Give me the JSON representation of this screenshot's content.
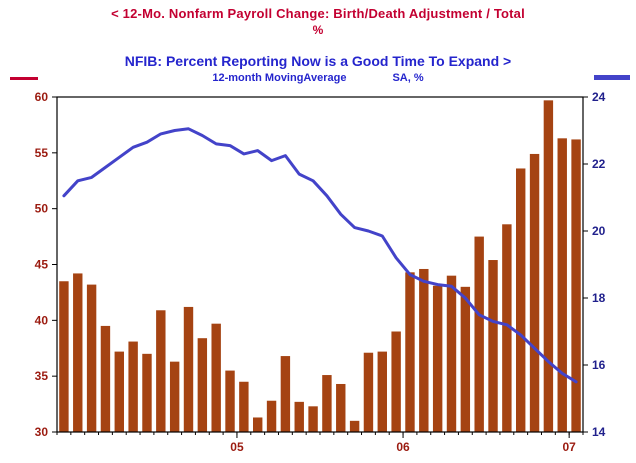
{
  "header": {
    "series_left_title": "<  12-Mo. Nonfarm Payroll Change: Birth/Death Adjustment / Total",
    "series_left_units": "%",
    "series_right_title": "NFIB: Percent Reporting Now is a Good Time To Expand  >",
    "series_right_subtitle_1": "12-month MovingAverage",
    "series_right_subtitle_2": "SA, %"
  },
  "colors": {
    "background": "#FFFFFF",
    "title_red": "#C30031",
    "title_blue": "#2525CD",
    "left_axis_text": "#9B1B10",
    "right_axis_text": "#20208C",
    "x_axis_text": "#9B1B10",
    "bar": "#A54312",
    "line": "#4343C9",
    "axis_line": "#000000"
  },
  "chart_data": {
    "type": "bar",
    "title": "12-Mo. Nonfarm Payroll Change: Birth/Death Adjustment / Total (%) vs NFIB: Percent Reporting Now is a Good Time To Expand (12-month Moving Average, SA, %)",
    "grid": false,
    "legend_position": "top",
    "left_axis": {
      "min": 30,
      "max": 60,
      "step": 5,
      "label": "12-Mo. Nonfarm Payroll Change: Birth/Death Adjustment / Total, %"
    },
    "right_axis": {
      "min": 14,
      "max": 24,
      "step": 2,
      "label": "NFIB: Percent Reporting Now is a Good Time To Expand, 12-month Moving Average, SA, %"
    },
    "x_ticks": [
      {
        "label": "05",
        "boundary_index": 13
      },
      {
        "label": "06",
        "boundary_index": 25
      },
      {
        "label": "07",
        "boundary_index": 37
      }
    ],
    "series": [
      {
        "name": "12-Mo. Nonfarm Payroll Change: Birth/Death Adjustment / Total (%)",
        "kind": "bar",
        "axis": "left",
        "values": [
          43.5,
          44.2,
          43.2,
          39.5,
          37.2,
          38.1,
          37.0,
          40.9,
          36.3,
          41.2,
          38.4,
          39.7,
          35.5,
          34.5,
          31.3,
          32.8,
          36.8,
          32.7,
          32.3,
          35.1,
          34.3,
          31.0,
          37.1,
          37.2,
          39.0,
          44.3,
          44.6,
          43.1,
          44.0,
          43.0,
          47.5,
          45.4,
          48.6,
          53.6,
          54.9,
          59.7,
          56.3,
          56.2
        ]
      },
      {
        "name": "NFIB: Percent Reporting Now is a Good Time To Expand, 12-month Moving Average (SA, %)",
        "kind": "line",
        "axis": "right",
        "values": [
          21.05,
          21.5,
          21.6,
          21.9,
          22.2,
          22.5,
          22.65,
          22.9,
          23.0,
          23.05,
          22.85,
          22.6,
          22.55,
          22.3,
          22.4,
          22.1,
          22.25,
          21.7,
          21.5,
          21.05,
          20.5,
          20.1,
          20.0,
          19.85,
          19.2,
          18.7,
          18.5,
          18.4,
          18.35,
          18.0,
          17.5,
          17.3,
          17.2,
          16.9,
          16.5,
          16.1,
          15.75,
          15.5
        ]
      }
    ]
  }
}
